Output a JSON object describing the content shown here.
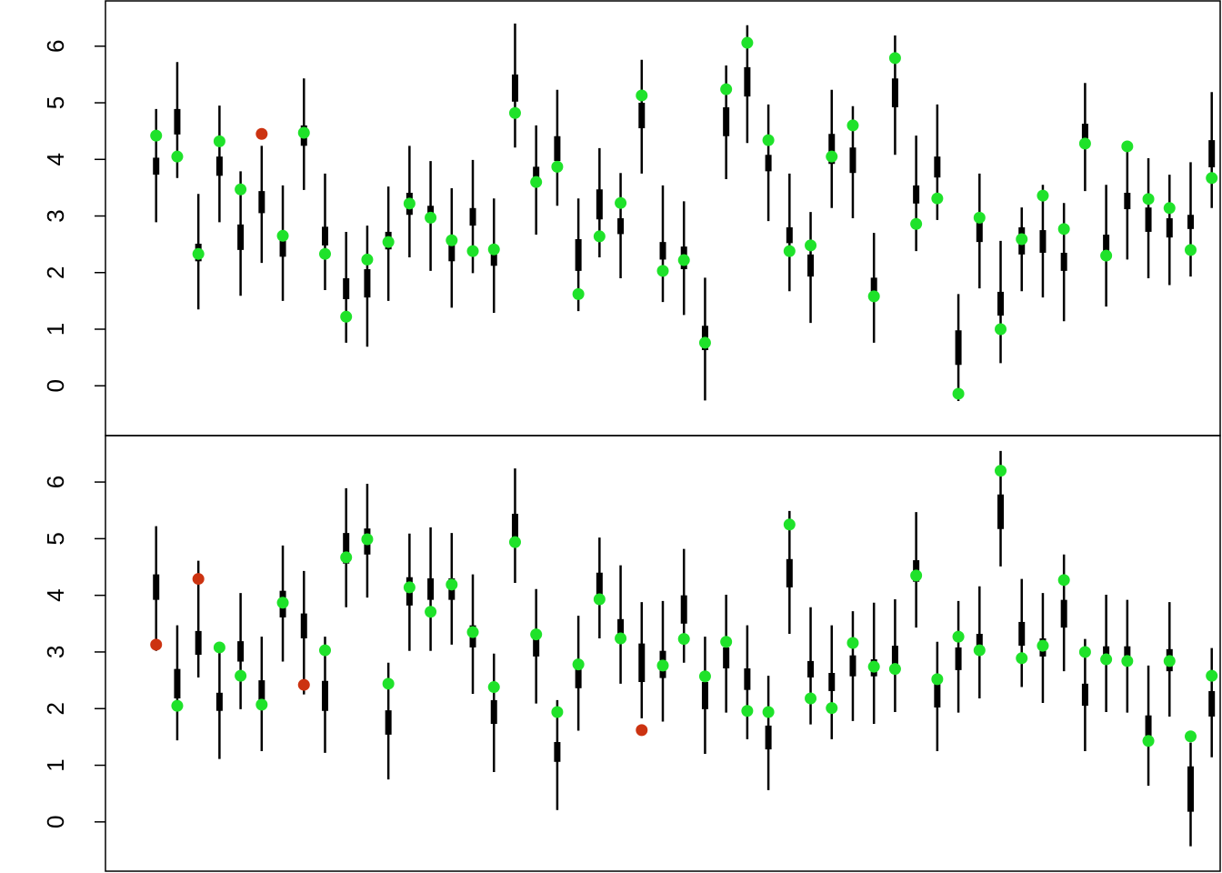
{
  "chart_data": [
    {
      "type": "interval",
      "x": [
        1,
        2,
        3,
        4,
        5,
        6,
        7,
        8,
        9,
        10,
        11,
        12,
        13,
        14,
        15,
        16,
        17,
        18,
        19,
        20,
        21,
        22,
        23,
        24,
        25,
        26,
        27,
        28,
        29,
        30,
        31,
        32,
        33,
        34,
        35,
        36,
        37,
        38,
        39,
        40,
        41,
        42,
        43,
        44,
        45,
        46,
        47,
        48,
        49,
        50,
        51
      ],
      "xlim": [
        -1.4,
        51.4
      ],
      "ylim": [
        -0.88,
        6.8
      ],
      "yticks": [
        0,
        1,
        2,
        3,
        4,
        5,
        6
      ],
      "line_color": "#000000",
      "low": [
        2.89,
        3.67,
        1.35,
        2.89,
        1.59,
        2.17,
        1.5,
        3.46,
        1.69,
        0.76,
        0.69,
        1.5,
        2.27,
        2.03,
        1.38,
        1.99,
        1.29,
        4.21,
        2.67,
        3.18,
        1.32,
        2.27,
        1.9,
        3.75,
        1.48,
        1.25,
        -0.26,
        3.65,
        4.29,
        2.91,
        1.67,
        1.11,
        3.14,
        2.96,
        0.76,
        4.08,
        2.38,
        2.93,
        -0.27,
        1.72,
        0.4,
        1.67,
        1.56,
        1.14,
        3.44,
        1.4,
        2.23,
        1.9,
        1.78,
        1.93,
        3.14
      ],
      "low_inner": [
        3.73,
        4.44,
        2.2,
        3.71,
        2.4,
        3.05,
        2.28,
        4.24,
        2.48,
        1.53,
        1.56,
        2.41,
        3.02,
        2.88,
        2.2,
        2.83,
        2.12,
        5.02,
        3.57,
        3.97,
        2.03,
        2.94,
        2.68,
        4.55,
        2.23,
        2.06,
        0.63,
        4.41,
        5.11,
        3.79,
        2.52,
        1.93,
        3.92,
        3.76,
        1.59,
        4.92,
        3.22,
        3.68,
        0.37,
        2.54,
        1.24,
        2.32,
        2.35,
        2.03,
        4.24,
        2.28,
        3.12,
        2.72,
        2.62,
        2.77,
        3.86
      ],
      "high_inner": [
        4.03,
        4.89,
        2.51,
        4.05,
        2.85,
        3.44,
        2.72,
        4.6,
        2.81,
        1.9,
        2.06,
        2.72,
        3.41,
        3.18,
        2.56,
        3.14,
        2.48,
        5.5,
        3.87,
        4.41,
        2.59,
        3.47,
        2.96,
        5.0,
        2.54,
        2.46,
        1.06,
        4.92,
        5.63,
        4.08,
        2.8,
        2.32,
        4.45,
        4.21,
        1.91,
        5.43,
        3.54,
        4.05,
        0.98,
        2.91,
        1.66,
        2.8,
        2.75,
        2.35,
        4.63,
        2.67,
        3.41,
        3.15,
        2.96,
        3.02,
        4.34
      ],
      "high": [
        4.89,
        5.72,
        3.39,
        4.95,
        3.79,
        4.24,
        3.54,
        5.43,
        3.75,
        2.72,
        2.83,
        3.52,
        4.24,
        3.97,
        3.49,
        3.99,
        3.31,
        6.4,
        4.6,
        5.23,
        3.31,
        4.2,
        3.76,
        5.76,
        3.54,
        3.26,
        1.91,
        5.66,
        6.37,
        4.97,
        3.75,
        3.07,
        5.23,
        4.94,
        2.7,
        6.19,
        4.42,
        4.97,
        1.62,
        3.75,
        2.56,
        3.15,
        3.55,
        3.23,
        5.35,
        3.55,
        4.29,
        4.02,
        3.73,
        3.95,
        5.19
      ],
      "values": [
        4.42,
        4.05,
        2.33,
        4.32,
        3.47,
        4.45,
        2.65,
        4.47,
        2.33,
        1.22,
        2.23,
        2.54,
        3.22,
        2.97,
        2.57,
        2.38,
        2.41,
        4.82,
        3.6,
        3.87,
        1.62,
        2.64,
        3.23,
        5.13,
        2.03,
        2.22,
        0.76,
        5.24,
        6.06,
        4.34,
        2.38,
        2.48,
        4.05,
        4.6,
        1.58,
        5.79,
        2.86,
        3.31,
        -0.14,
        2.97,
        1.0,
        2.59,
        3.36,
        2.77,
        4.28,
        2.3,
        4.23,
        3.3,
        3.14,
        2.4,
        3.67
      ],
      "point_colors": [
        "#1fe22a",
        "#1fe22a",
        "#1fe22a",
        "#1fe22a",
        "#1fe22a",
        "#cc3311",
        "#1fe22a",
        "#1fe22a",
        "#1fe22a",
        "#1fe22a",
        "#1fe22a",
        "#1fe22a",
        "#1fe22a",
        "#1fe22a",
        "#1fe22a",
        "#1fe22a",
        "#1fe22a",
        "#1fe22a",
        "#1fe22a",
        "#1fe22a",
        "#1fe22a",
        "#1fe22a",
        "#1fe22a",
        "#1fe22a",
        "#1fe22a",
        "#1fe22a",
        "#1fe22a",
        "#1fe22a",
        "#1fe22a",
        "#1fe22a",
        "#1fe22a",
        "#1fe22a",
        "#1fe22a",
        "#1fe22a",
        "#1fe22a",
        "#1fe22a",
        "#1fe22a",
        "#1fe22a",
        "#1fe22a",
        "#1fe22a",
        "#1fe22a",
        "#1fe22a",
        "#1fe22a",
        "#1fe22a",
        "#1fe22a",
        "#1fe22a",
        "#1fe22a",
        "#1fe22a",
        "#1fe22a",
        "#1fe22a",
        "#1fe22a"
      ]
    },
    {
      "type": "interval",
      "x": [
        1,
        2,
        3,
        4,
        5,
        6,
        7,
        8,
        9,
        10,
        11,
        12,
        13,
        14,
        15,
        16,
        17,
        18,
        19,
        20,
        21,
        22,
        23,
        24,
        25,
        26,
        27,
        28,
        29,
        30,
        31,
        32,
        33,
        34,
        35,
        36,
        37,
        38,
        39,
        40,
        41,
        42,
        43,
        44,
        45,
        46,
        47,
        48,
        49,
        50,
        51
      ],
      "xlim": [
        -1.4,
        51.4
      ],
      "ylim": [
        -0.87,
        6.82
      ],
      "yticks": [
        0,
        1,
        2,
        3,
        4,
        5,
        6
      ],
      "line_color": "#000000",
      "low": [
        3.02,
        1.44,
        2.55,
        1.11,
        1.99,
        1.25,
        2.83,
        2.25,
        1.22,
        3.79,
        3.96,
        0.75,
        3.02,
        3.02,
        3.13,
        2.26,
        0.88,
        4.22,
        2.09,
        0.21,
        1.61,
        3.24,
        2.44,
        1.83,
        1.77,
        2.81,
        1.2,
        1.93,
        1.46,
        0.56,
        3.32,
        1.72,
        1.46,
        1.78,
        1.73,
        1.94,
        3.43,
        1.25,
        1.93,
        2.18,
        4.51,
        2.38,
        2.1,
        2.66,
        1.25,
        1.94,
        1.93,
        0.64,
        1.86,
        -0.43,
        1.14
      ],
      "low_inner": [
        3.92,
        2.18,
        2.95,
        1.96,
        2.83,
        2.15,
        3.61,
        3.24,
        1.96,
        4.56,
        4.72,
        1.54,
        3.82,
        3.92,
        3.92,
        3.08,
        1.73,
        5.02,
        2.92,
        1.06,
        2.36,
        3.92,
        3.32,
        2.47,
        2.54,
        3.5,
        1.99,
        2.71,
        2.33,
        1.28,
        4.14,
        2.55,
        2.31,
        2.57,
        2.57,
        2.76,
        4.24,
        2.02,
        2.68,
        2.95,
        5.17,
        3.11,
        2.92,
        3.43,
        2.05,
        2.79,
        2.78,
        1.51,
        2.66,
        0.18,
        1.86
      ],
      "high_inner": [
        4.37,
        2.7,
        3.37,
        2.28,
        3.19,
        2.5,
        4.08,
        3.68,
        2.49,
        5.1,
        5.18,
        1.97,
        4.32,
        4.3,
        4.3,
        3.47,
        2.15,
        5.44,
        3.27,
        1.41,
        2.84,
        4.4,
        3.58,
        3.15,
        3.02,
        4.0,
        2.47,
        3.08,
        2.71,
        1.7,
        4.64,
        2.84,
        2.63,
        2.94,
        2.87,
        3.11,
        4.62,
        2.44,
        3.08,
        3.32,
        5.78,
        3.53,
        3.24,
        3.92,
        2.44,
        3.1,
        3.1,
        1.88,
        3.05,
        0.98,
        2.31
      ],
      "high": [
        5.22,
        3.47,
        4.61,
        3.15,
        4.04,
        3.27,
        4.88,
        4.43,
        3.27,
        5.89,
        5.97,
        2.81,
        5.09,
        5.2,
        5.1,
        4.37,
        2.97,
        6.24,
        4.11,
        2.15,
        3.64,
        5.02,
        4.53,
        3.88,
        3.9,
        4.82,
        3.27,
        4.01,
        3.47,
        2.58,
        5.49,
        3.79,
        3.47,
        3.72,
        3.87,
        3.93,
        5.47,
        3.18,
        3.9,
        4.16,
        6.55,
        4.29,
        4.04,
        4.72,
        3.23,
        4.01,
        3.92,
        2.76,
        3.88,
        1.4,
        3.07
      ],
      "values": [
        3.13,
        2.05,
        4.29,
        3.08,
        2.58,
        2.07,
        3.87,
        2.42,
        3.03,
        4.67,
        4.99,
        2.44,
        4.14,
        3.71,
        4.19,
        3.35,
        2.38,
        4.94,
        3.31,
        1.94,
        2.78,
        3.93,
        3.24,
        1.62,
        2.76,
        3.23,
        2.57,
        3.18,
        1.96,
        1.94,
        5.25,
        2.18,
        2.01,
        3.16,
        2.74,
        2.7,
        4.35,
        2.52,
        3.27,
        3.03,
        6.2,
        2.89,
        3.11,
        4.27,
        3.0,
        2.87,
        2.84,
        1.43,
        2.84,
        1.51,
        2.58
      ],
      "point_colors": [
        "#cc3311",
        "#1fe22a",
        "#cc3311",
        "#1fe22a",
        "#1fe22a",
        "#1fe22a",
        "#1fe22a",
        "#cc3311",
        "#1fe22a",
        "#1fe22a",
        "#1fe22a",
        "#1fe22a",
        "#1fe22a",
        "#1fe22a",
        "#1fe22a",
        "#1fe22a",
        "#1fe22a",
        "#1fe22a",
        "#1fe22a",
        "#1fe22a",
        "#1fe22a",
        "#1fe22a",
        "#1fe22a",
        "#cc3311",
        "#1fe22a",
        "#1fe22a",
        "#1fe22a",
        "#1fe22a",
        "#1fe22a",
        "#1fe22a",
        "#1fe22a",
        "#1fe22a",
        "#1fe22a",
        "#1fe22a",
        "#1fe22a",
        "#1fe22a",
        "#1fe22a",
        "#1fe22a",
        "#1fe22a",
        "#1fe22a",
        "#1fe22a",
        "#1fe22a",
        "#1fe22a",
        "#1fe22a",
        "#1fe22a",
        "#1fe22a",
        "#1fe22a",
        "#1fe22a",
        "#1fe22a",
        "#1fe22a",
        "#1fe22a"
      ]
    }
  ]
}
